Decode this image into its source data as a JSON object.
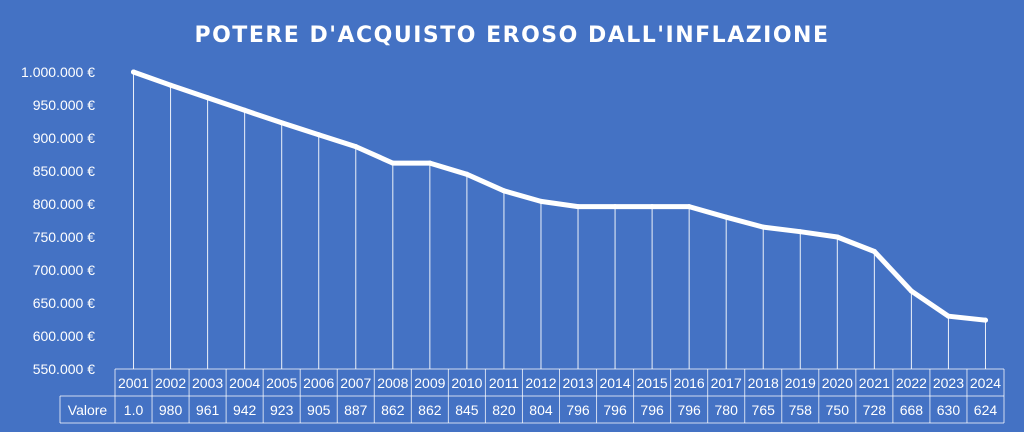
{
  "chart_data": {
    "type": "line",
    "title": "POTERE D'ACQUISTO EROSO DALL'INFLAZIONE",
    "xlabel": "",
    "ylabel": "",
    "ylim": [
      550000,
      1000000
    ],
    "y_ticks": [
      "1.000.000 €",
      "950.000 €",
      "900.000 €",
      "850.000 €",
      "800.000 €",
      "750.000 €",
      "700.000 €",
      "650.000 €",
      "600.000 €",
      "550.000 €"
    ],
    "y_tick_values": [
      1000000,
      950000,
      900000,
      850000,
      800000,
      750000,
      700000,
      650000,
      600000,
      550000
    ],
    "categories": [
      "2001",
      "2002",
      "2003",
      "2004",
      "2005",
      "2006",
      "2007",
      "2008",
      "2009",
      "2010",
      "2011",
      "2012",
      "2013",
      "2014",
      "2015",
      "2016",
      "2017",
      "2018",
      "2019",
      "2020",
      "2021",
      "2022",
      "2023",
      "2024"
    ],
    "values": [
      1000000,
      980000,
      961000,
      942000,
      923000,
      905000,
      887000,
      862000,
      862000,
      845000,
      820000,
      804000,
      796000,
      796000,
      796000,
      796000,
      780000,
      765000,
      758000,
      750000,
      728000,
      668000,
      630000,
      624000
    ],
    "data_table": {
      "row_label": "Valore",
      "cells": [
        "1.0",
        "980",
        "961",
        "942",
        "923",
        "905",
        "887",
        "862",
        "862",
        "845",
        "820",
        "804",
        "796",
        "796",
        "796",
        "796",
        "780",
        "765",
        "758",
        "750",
        "728",
        "668",
        "630",
        "624"
      ]
    },
    "grid": false,
    "drop_lines": true,
    "line_color": "#ffffff",
    "background_color": "#4472C4"
  }
}
